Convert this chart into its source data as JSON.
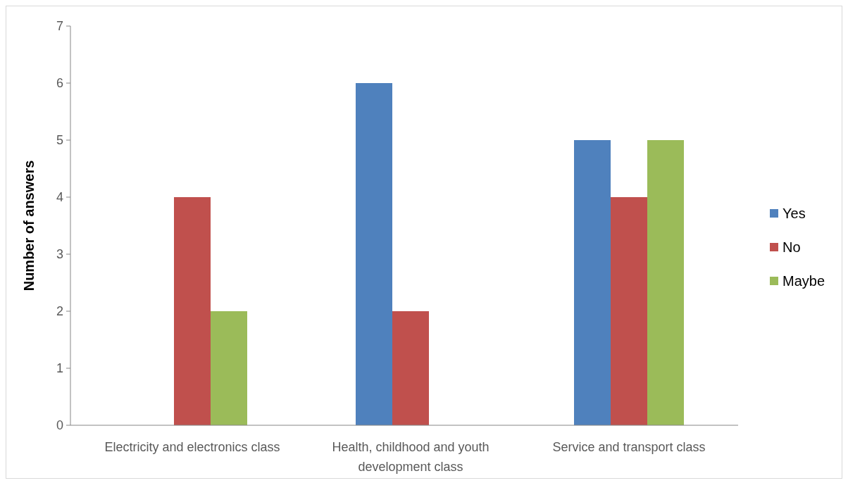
{
  "chart_data": {
    "type": "bar",
    "ylabel": "Number of answers",
    "categories": [
      "Electricity and electronics class",
      "Health, childhood and youth development class",
      "Service and transport class"
    ],
    "series": [
      {
        "name": "Yes",
        "color": "#4f81bd",
        "values": [
          0,
          6,
          5
        ]
      },
      {
        "name": "No",
        "color": "#c0504d",
        "values": [
          4,
          2,
          4
        ]
      },
      {
        "name": "Maybe",
        "color": "#9bbb59",
        "values": [
          2,
          0,
          5
        ]
      }
    ],
    "ylim": [
      0,
      7
    ],
    "yticks": [
      0,
      1,
      2,
      3,
      4,
      5,
      6,
      7
    ],
    "grid": false,
    "legend": "right"
  }
}
